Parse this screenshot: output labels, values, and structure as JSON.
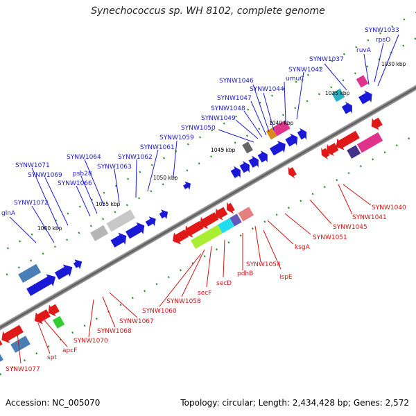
{
  "title": "Synechococcus sp. WH 8102, complete genome",
  "footer": {
    "accession": "Accession: NC_005070",
    "topology": "Topology: circular; Length: 2,434,428 bp; Genes: 2,572"
  },
  "ticks": [
    {
      "text": "1030 kbp"
    },
    {
      "text": "1035 kbp"
    },
    {
      "text": "1040 kbp"
    },
    {
      "text": "1045 kbp"
    },
    {
      "text": "1050 kbp"
    },
    {
      "text": "1055 kbp"
    },
    {
      "text": "1060 kbp"
    }
  ],
  "blue_labels": [
    "SYNW1033",
    "rpsO",
    "ruvA",
    "SYNW1037",
    "SYNW1042",
    "umuC",
    "SYNW1044",
    "SYNW1046",
    "SYNW1047",
    "SYNW1048",
    "SYNW1049",
    "SYNW1050",
    "SYNW1059",
    "SYNW1061",
    "SYNW1062",
    "SYNW1063",
    "SYNW1064",
    "psb28",
    "SYNW1066",
    "SYNW1069",
    "SYNW1071",
    "SYNW1072",
    "glnA"
  ],
  "red_labels": [
    "SYNW1040",
    "SYNW1041",
    "SYNW1045",
    "SYNW1051",
    "ksgA",
    "ispE",
    "SYNW1054",
    "pdhB",
    "secD",
    "secF",
    "SYNW1058",
    "SYNW1060",
    "SYNW1067",
    "SYNW1068",
    "SYNW1070",
    "apcF",
    "spt",
    "SYNW1077"
  ],
  "colors": {
    "forward": "#1a1ad6",
    "reverse": "#e01818",
    "backbone": "#777777"
  }
}
